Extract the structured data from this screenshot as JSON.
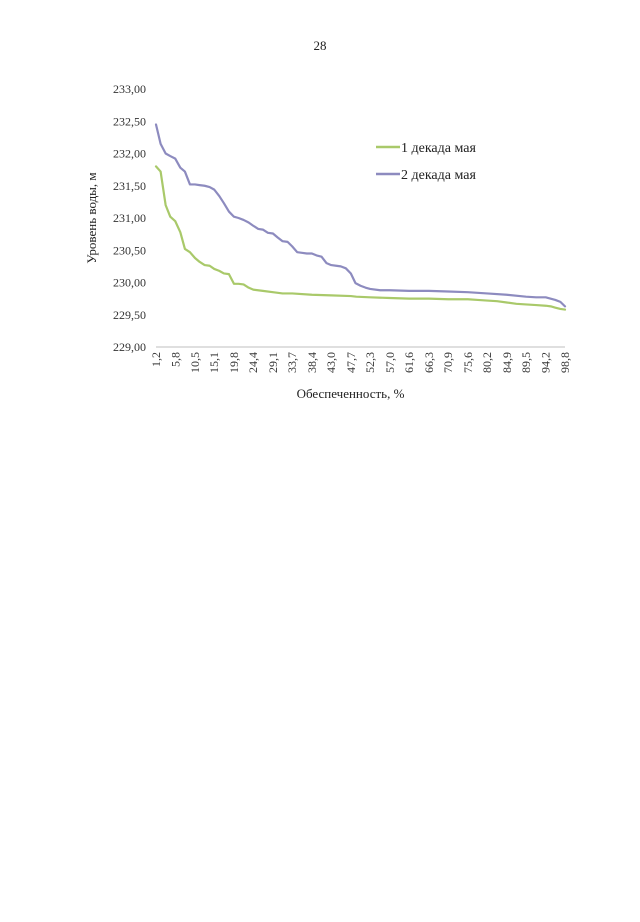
{
  "page": {
    "number": "28"
  },
  "chart_data": {
    "type": "line",
    "title": "",
    "xlabel": "Обеспеченность, %",
    "ylabel": "Уровень воды, м",
    "ylim": [
      229.0,
      233.0
    ],
    "xlim": [
      1.2,
      98.8
    ],
    "y_ticks": [
      "229,00",
      "229,50",
      "230,00",
      "230,50",
      "231,00",
      "231,50",
      "232,00",
      "232,50",
      "233,00"
    ],
    "x_ticks": [
      "1,2",
      "5,8",
      "10,5",
      "15,1",
      "19,8",
      "24,4",
      "29,1",
      "33,7",
      "38,4",
      "43,0",
      "47,7",
      "52,3",
      "57,0",
      "61,6",
      "66,3",
      "70,9",
      "75,6",
      "80,2",
      "84,9",
      "89,5",
      "94,2",
      "98,8"
    ],
    "grid": false,
    "legend_position": "top-right",
    "series": [
      {
        "name": "1 декада мая",
        "color": "#a9c96a",
        "x": [
          1.2,
          2.3,
          3.5,
          4.6,
          5.8,
          7.0,
          8.1,
          9.3,
          10.5,
          11.6,
          12.8,
          14.0,
          15.1,
          16.3,
          17.4,
          18.6,
          19.8,
          20.9,
          22.1,
          23.3,
          24.4,
          26.7,
          29.1,
          31.4,
          33.7,
          38.4,
          43.0,
          47.7,
          49.0,
          52.3,
          57.0,
          61.6,
          66.3,
          70.9,
          75.6,
          78.0,
          80.2,
          82.6,
          84.9,
          87.2,
          89.5,
          91.9,
          94.2,
          95.4,
          96.5,
          97.7,
          98.8
        ],
        "y": [
          231.8,
          231.72,
          231.2,
          231.02,
          230.95,
          230.78,
          230.52,
          230.47,
          230.38,
          230.32,
          230.27,
          230.26,
          230.21,
          230.18,
          230.14,
          230.13,
          229.98,
          229.98,
          229.97,
          229.92,
          229.89,
          229.87,
          229.85,
          229.83,
          229.83,
          229.81,
          229.8,
          229.79,
          229.78,
          229.77,
          229.76,
          229.75,
          229.75,
          229.74,
          229.74,
          229.73,
          229.72,
          229.71,
          229.69,
          229.67,
          229.66,
          229.65,
          229.64,
          229.63,
          229.61,
          229.59,
          229.58
        ]
      },
      {
        "name": "2 декада мая",
        "color": "#8d8bbf",
        "x": [
          1.2,
          2.3,
          3.5,
          4.6,
          5.8,
          7.0,
          8.1,
          9.3,
          10.5,
          11.6,
          12.8,
          14.0,
          15.1,
          16.3,
          17.4,
          18.6,
          19.8,
          20.9,
          22.1,
          23.3,
          24.4,
          25.6,
          26.7,
          27.9,
          29.1,
          30.2,
          31.4,
          32.6,
          33.7,
          34.9,
          36.0,
          37.2,
          38.4,
          39.5,
          40.7,
          41.9,
          43.0,
          44.2,
          45.3,
          46.5,
          47.7,
          48.8,
          50.0,
          51.2,
          52.3,
          54.7,
          57.0,
          61.6,
          66.3,
          70.9,
          75.6,
          80.2,
          84.9,
          89.5,
          91.9,
          94.2,
          95.4,
          96.5,
          97.7,
          98.8
        ],
        "y": [
          232.45,
          232.15,
          232.0,
          231.96,
          231.92,
          231.78,
          231.72,
          231.52,
          231.52,
          231.51,
          231.5,
          231.48,
          231.44,
          231.34,
          231.23,
          231.1,
          231.02,
          231.0,
          230.97,
          230.93,
          230.88,
          230.83,
          230.82,
          230.77,
          230.76,
          230.7,
          230.64,
          230.63,
          230.56,
          230.47,
          230.46,
          230.45,
          230.45,
          230.42,
          230.4,
          230.3,
          230.27,
          230.26,
          230.25,
          230.22,
          230.14,
          229.99,
          229.95,
          229.92,
          229.9,
          229.88,
          229.88,
          229.87,
          229.87,
          229.86,
          229.85,
          229.83,
          229.81,
          229.78,
          229.77,
          229.77,
          229.75,
          229.73,
          229.7,
          229.63
        ]
      }
    ]
  }
}
